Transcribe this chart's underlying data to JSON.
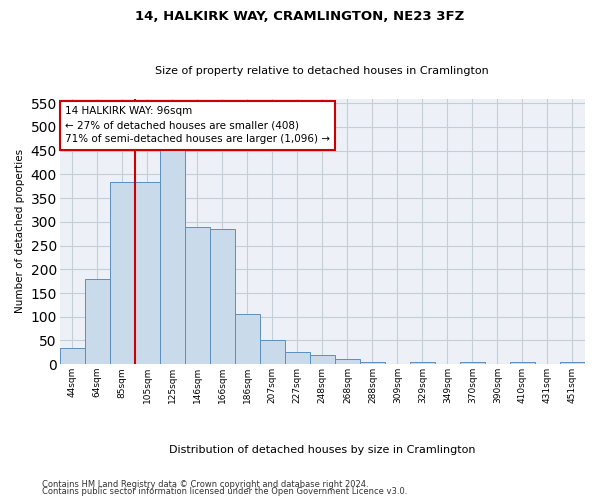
{
  "title": "14, HALKIRK WAY, CRAMLINGTON, NE23 3FZ",
  "subtitle": "Size of property relative to detached houses in Cramlington",
  "xlabel": "Distribution of detached houses by size in Cramlington",
  "ylabel": "Number of detached properties",
  "footnote1": "Contains HM Land Registry data © Crown copyright and database right 2024.",
  "footnote2": "Contains public sector information licensed under the Open Government Licence v3.0.",
  "bins": [
    "44sqm",
    "64sqm",
    "85sqm",
    "105sqm",
    "125sqm",
    "146sqm",
    "166sqm",
    "186sqm",
    "207sqm",
    "227sqm",
    "248sqm",
    "268sqm",
    "288sqm",
    "309sqm",
    "329sqm",
    "349sqm",
    "370sqm",
    "390sqm",
    "410sqm",
    "431sqm",
    "451sqm"
  ],
  "bar_values": [
    35,
    180,
    385,
    385,
    465,
    290,
    285,
    105,
    50,
    25,
    20,
    10,
    5,
    0,
    5,
    0,
    5,
    0,
    5,
    0,
    5
  ],
  "bar_color": "#c9daea",
  "bar_edge_color": "#5b8ec0",
  "vline_color": "#cc0000",
  "annotation_text": "14 HALKIRK WAY: 96sqm\n← 27% of detached houses are smaller (408)\n71% of semi-detached houses are larger (1,096) →",
  "ylim": [
    0,
    560
  ],
  "yticks": [
    0,
    50,
    100,
    150,
    200,
    250,
    300,
    350,
    400,
    450,
    500,
    550
  ],
  "grid_color": "#c5cdd6",
  "background_color": "#edf1f7"
}
